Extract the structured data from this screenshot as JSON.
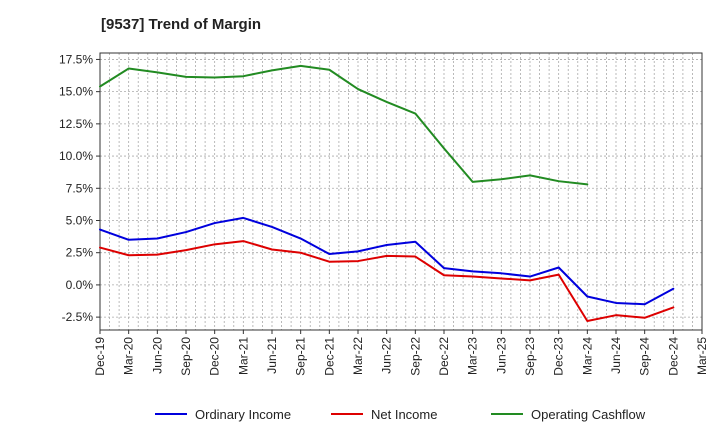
{
  "chart_data": {
    "type": "line",
    "title": "[9537]  Trend of Margin",
    "xlabel": "",
    "ylabel": "",
    "x_ticks": [
      "Dec-19",
      "Mar-20",
      "Jun-20",
      "Sep-20",
      "Dec-20",
      "Mar-21",
      "Jun-21",
      "Sep-21",
      "Dec-21",
      "Mar-22",
      "Jun-22",
      "Sep-22",
      "Dec-22",
      "Mar-23",
      "Jun-23",
      "Sep-23",
      "Dec-23",
      "Mar-24",
      "Jun-24",
      "Sep-24",
      "Dec-24",
      "Mar-25"
    ],
    "y_ticks": [
      -2.5,
      0.0,
      2.5,
      5.0,
      7.5,
      10.0,
      12.5,
      15.0,
      17.5
    ],
    "y_tick_labels": [
      "-2.5%",
      "0.0%",
      "2.5%",
      "5.0%",
      "7.5%",
      "10.0%",
      "12.5%",
      "15.0%",
      "17.5%"
    ],
    "ylim": [
      -3.5,
      18.0
    ],
    "grid": true,
    "legend_position": "bottom",
    "series": [
      {
        "name": "Ordinary Income",
        "color": "#0000dd",
        "values": [
          4.3,
          3.5,
          3.6,
          4.1,
          4.8,
          5.2,
          4.5,
          3.6,
          2.4,
          2.6,
          3.1,
          3.35,
          1.3,
          1.05,
          0.9,
          0.65,
          1.35,
          -0.9,
          -1.4,
          -1.5,
          -0.3,
          null
        ]
      },
      {
        "name": "Net Income",
        "color": "#dd0000",
        "values": [
          2.9,
          2.3,
          2.35,
          2.7,
          3.15,
          3.4,
          2.75,
          2.5,
          1.8,
          1.85,
          2.25,
          2.2,
          0.75,
          0.65,
          0.5,
          0.35,
          0.8,
          -2.8,
          -2.35,
          -2.55,
          -1.75,
          null
        ]
      },
      {
        "name": "Operating Cashflow",
        "color": "#228b22",
        "values": [
          15.4,
          16.8,
          16.5,
          16.15,
          16.1,
          16.2,
          16.65,
          17.0,
          16.7,
          15.2,
          14.2,
          13.3,
          10.6,
          8.0,
          8.2,
          8.5,
          8.05,
          7.8,
          null,
          null,
          null,
          null
        ]
      }
    ]
  }
}
